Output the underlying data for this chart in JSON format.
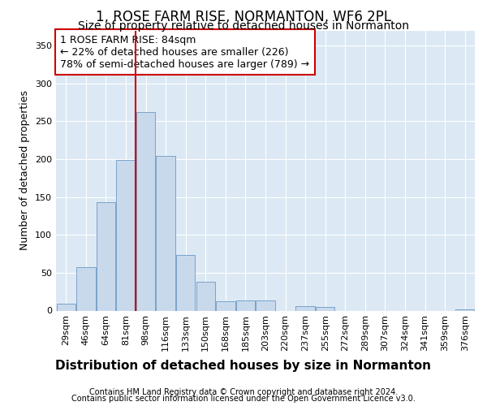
{
  "title": "1, ROSE FARM RISE, NORMANTON, WF6 2PL",
  "subtitle": "Size of property relative to detached houses in Normanton",
  "xlabel": "Distribution of detached houses by size in Normanton",
  "ylabel": "Number of detached properties",
  "bar_labels": [
    "29sqm",
    "46sqm",
    "64sqm",
    "81sqm",
    "98sqm",
    "116sqm",
    "133sqm",
    "150sqm",
    "168sqm",
    "185sqm",
    "203sqm",
    "220sqm",
    "237sqm",
    "255sqm",
    "272sqm",
    "289sqm",
    "307sqm",
    "324sqm",
    "341sqm",
    "359sqm",
    "376sqm"
  ],
  "bar_values": [
    9,
    57,
    143,
    199,
    262,
    204,
    73,
    38,
    12,
    13,
    13,
    0,
    6,
    5,
    0,
    0,
    0,
    0,
    0,
    0,
    2
  ],
  "bar_color": "#c9d9ec",
  "bar_edge_color": "#7aa3c8",
  "vline_color": "#cc0000",
  "vline_x": 3.5,
  "annotation_line1": "1 ROSE FARM RISE: 84sqm",
  "annotation_line2": "← 22% of detached houses are smaller (226)",
  "annotation_line3": "78% of semi-detached houses are larger (789) →",
  "annotation_box_facecolor": "#ffffff",
  "annotation_box_edgecolor": "#cc0000",
  "ylim": [
    0,
    370
  ],
  "yticks": [
    0,
    50,
    100,
    150,
    200,
    250,
    300,
    350
  ],
  "bg_color": "#ffffff",
  "plot_bg_color": "#dce9f5",
  "grid_color": "#ffffff",
  "title_fontsize": 12,
  "subtitle_fontsize": 10,
  "ylabel_fontsize": 9,
  "xlabel_fontsize": 11,
  "tick_fontsize": 8,
  "annotation_fontsize": 9,
  "footer_fontsize": 7,
  "footer_line1": "Contains HM Land Registry data © Crown copyright and database right 2024.",
  "footer_line2": "Contains public sector information licensed under the Open Government Licence v3.0."
}
